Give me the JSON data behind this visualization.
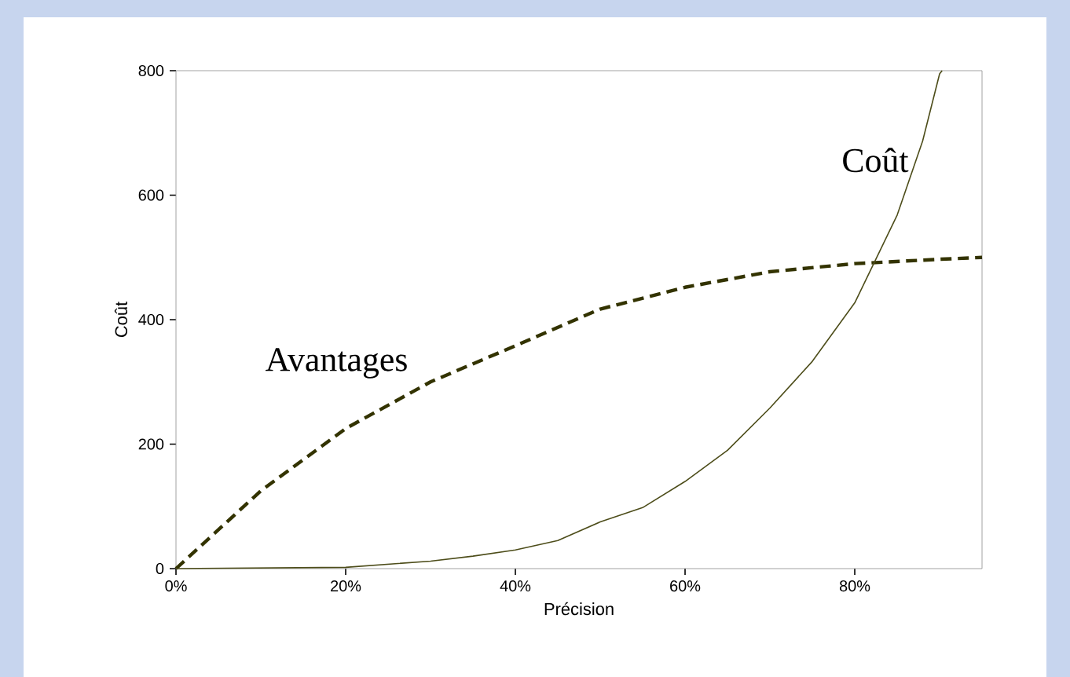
{
  "chart_data": {
    "type": "line",
    "xlabel": "Précision",
    "ylabel": "Coût",
    "xlim": [
      0,
      95
    ],
    "ylim": [
      0,
      800
    ],
    "xticks": [
      {
        "value": 0,
        "label": "0%"
      },
      {
        "value": 20,
        "label": "20%"
      },
      {
        "value": 40,
        "label": "40%"
      },
      {
        "value": 60,
        "label": "60%"
      },
      {
        "value": 80,
        "label": "80%"
      }
    ],
    "yticks": [
      0,
      200,
      400,
      600,
      800
    ],
    "legend": false,
    "grid": false,
    "marker": "none",
    "series": [
      {
        "name": "Avantages",
        "color": "#333300",
        "line_style": "dashed",
        "x": [
          0,
          10,
          20,
          30,
          40,
          50,
          60,
          70,
          80,
          90,
          95
        ],
        "values": [
          0,
          125,
          225,
          300,
          358,
          417,
          452,
          477,
          490,
          497,
          500
        ]
      },
      {
        "name": "Coût",
        "color": "#4d4d1a",
        "line_style": "solid",
        "x": [
          0,
          20,
          30,
          35,
          40,
          45,
          50,
          55,
          60,
          65,
          70,
          75,
          80,
          85,
          88,
          90,
          90.3
        ],
        "values": [
          0,
          2,
          12,
          20,
          30,
          45,
          75,
          98,
          140,
          190,
          258,
          333,
          427,
          568,
          687,
          795,
          800
        ]
      }
    ]
  }
}
